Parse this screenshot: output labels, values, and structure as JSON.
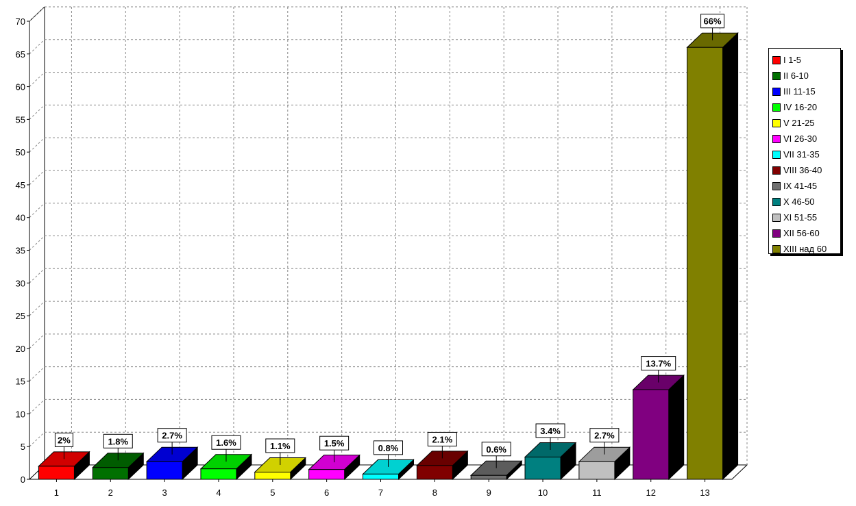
{
  "chart_data": {
    "type": "bar",
    "categories": [
      "1",
      "2",
      "3",
      "4",
      "5",
      "6",
      "7",
      "8",
      "9",
      "10",
      "11",
      "12",
      "13"
    ],
    "values": [
      2,
      1.8,
      2.7,
      1.6,
      1.1,
      1.5,
      0.8,
      2.1,
      0.6,
      3.4,
      2.7,
      13.7,
      66
    ],
    "data_labels": [
      "2%",
      "1.8%",
      "2.7%",
      "1.6%",
      "1.1%",
      "1.5%",
      "0.8%",
      "2.1%",
      "0.6%",
      "3.4%",
      "2.7%",
      "13.7%",
      "66%"
    ],
    "colors": [
      "#ff0000",
      "#007000",
      "#0000ff",
      "#00ff00",
      "#ffff00",
      "#ff00ff",
      "#00ffff",
      "#800000",
      "#707070",
      "#008080",
      "#c0c0c0",
      "#800080",
      "#808000"
    ],
    "legend": {
      "placement": "right",
      "entries": [
        {
          "label": "I 1-5",
          "color": "#ff0000"
        },
        {
          "label": "II 6-10",
          "color": "#007000"
        },
        {
          "label": "III 11-15",
          "color": "#0000ff"
        },
        {
          "label": "IV 16-20",
          "color": "#00ff00"
        },
        {
          "label": "V 21-25",
          "color": "#ffff00"
        },
        {
          "label": "VI 26-30",
          "color": "#ff00ff"
        },
        {
          "label": "VII 31-35",
          "color": "#00ffff"
        },
        {
          "label": "VIII 36-40",
          "color": "#800000"
        },
        {
          "label": "IX 41-45",
          "color": "#707070"
        },
        {
          "label": "X 46-50",
          "color": "#008080"
        },
        {
          "label": "XI 51-55",
          "color": "#c0c0c0"
        },
        {
          "label": "XII 56-60",
          "color": "#800080"
        },
        {
          "label": "XIII над 60",
          "color": "#808000"
        }
      ]
    },
    "ylim": [
      0,
      70
    ],
    "yticks": [
      "0",
      "5",
      "10",
      "15",
      "20",
      "25",
      "30",
      "35",
      "40",
      "45",
      "50",
      "55",
      "60",
      "65",
      "70"
    ],
    "grid": true,
    "style": "3d",
    "title": "",
    "xlabel": "",
    "ylabel": ""
  }
}
